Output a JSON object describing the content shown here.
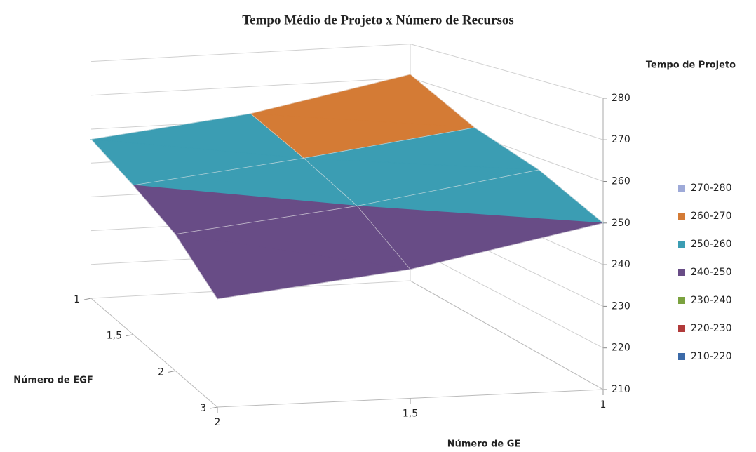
{
  "chart_data": {
    "type": "surface3d",
    "title": "Tempo Médio de Projeto x Número de Recursos",
    "z_axis_label": "Tempo de Projeto",
    "y_axis_label": "Número de EGF",
    "x_axis_label": "Número de GE",
    "egf_categories": [
      "1",
      "1,5",
      "2",
      "3"
    ],
    "ge_categories": [
      "2",
      "1,5",
      "1"
    ],
    "values": [
      [
        257,
        262,
        271
      ],
      [
        251,
        256,
        262
      ],
      [
        245,
        250,
        257
      ],
      [
        236,
        241,
        250
      ]
    ],
    "zlim": [
      210,
      280
    ],
    "zticks": [
      210,
      220,
      230,
      240,
      250,
      260,
      270,
      280
    ],
    "series": [
      {
        "name": "270-280",
        "color": "#9eaad8"
      },
      {
        "name": "260-270",
        "color": "#d47b35"
      },
      {
        "name": "250-260",
        "color": "#3b9db3"
      },
      {
        "name": "240-250",
        "color": "#684c86"
      },
      {
        "name": "230-240",
        "color": "#7ba23f"
      },
      {
        "name": "220-230",
        "color": "#b13a3a"
      },
      {
        "name": "210-220",
        "color": "#3b6aa8"
      }
    ]
  }
}
